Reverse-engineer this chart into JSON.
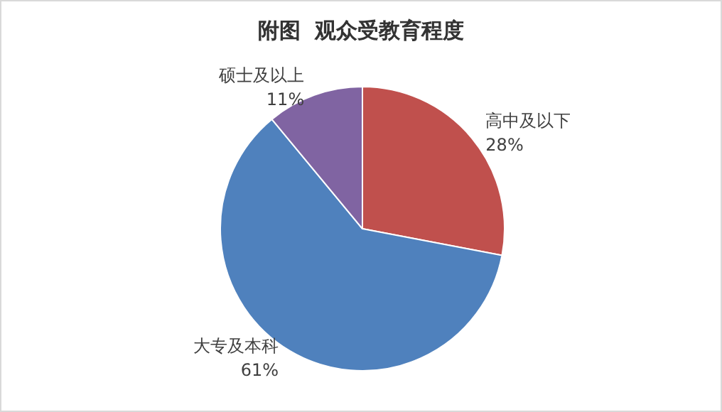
{
  "chart_data": {
    "type": "pie",
    "title": "附图  观众受教育程度",
    "categories": [
      "高中及以下",
      "大专及本科",
      "硕士及以上"
    ],
    "values": [
      28,
      61,
      11
    ],
    "value_labels": [
      "28%",
      "61%",
      "11%"
    ],
    "colors": [
      "#c0504d",
      "#4f81bd",
      "#8064a2"
    ],
    "legend": false
  }
}
